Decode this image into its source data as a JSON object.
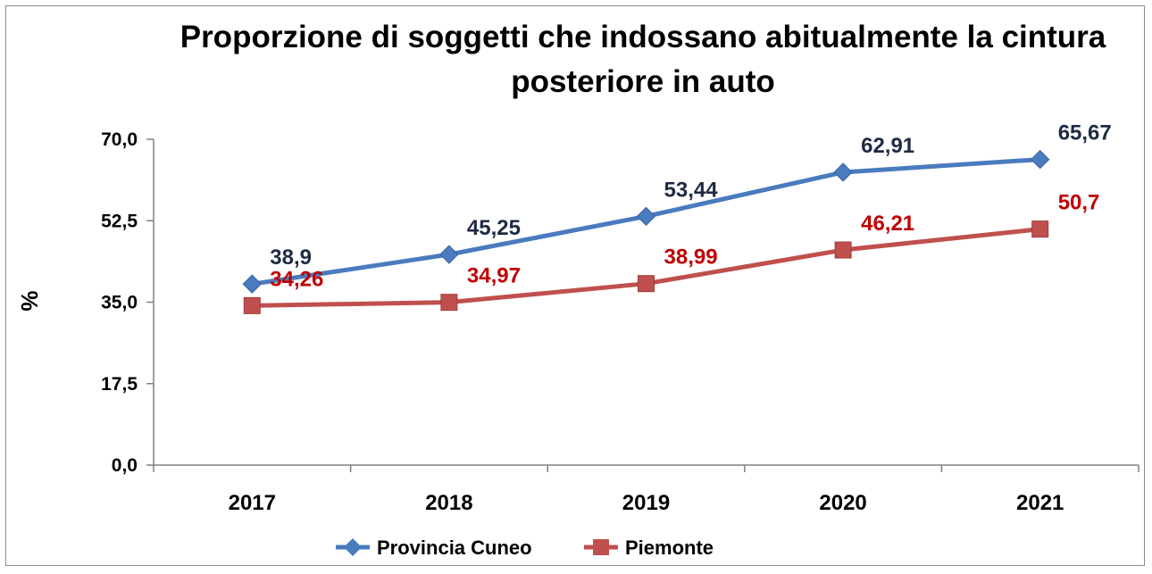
{
  "chart_data": {
    "type": "line",
    "title": "Proporzione di soggetti che indossano abitualmente la cintura posteriore in auto",
    "title_lines": [
      "Proporzione di soggetti che indossano abitualmente la cintura",
      "posteriore in auto"
    ],
    "xlabel": "",
    "ylabel": "%",
    "categories": [
      "2017",
      "2018",
      "2019",
      "2020",
      "2021"
    ],
    "yticks": [
      "0,0",
      "17,5",
      "35,0",
      "52,5",
      "70,0"
    ],
    "ytick_values": [
      0,
      17.5,
      35,
      52.5,
      70
    ],
    "ylim": [
      0,
      70
    ],
    "grid": false,
    "legend_position": "bottom",
    "series": [
      {
        "name": "Provincia Cuneo",
        "values": [
          38.9,
          45.25,
          53.44,
          62.91,
          65.67
        ],
        "labels": [
          "38,9",
          "45,25",
          "53,44",
          "62,91",
          "65,67"
        ],
        "color": "#4a7bbf",
        "label_color": "#1f2a44",
        "marker": "diamond"
      },
      {
        "name": "Piemonte",
        "values": [
          34.26,
          34.97,
          38.99,
          46.21,
          50.7
        ],
        "labels": [
          "34,26",
          "34,97",
          "38,99",
          "46,21",
          "50,7"
        ],
        "color": "#c0504d",
        "label_color": "#c00000",
        "marker": "square"
      }
    ]
  }
}
